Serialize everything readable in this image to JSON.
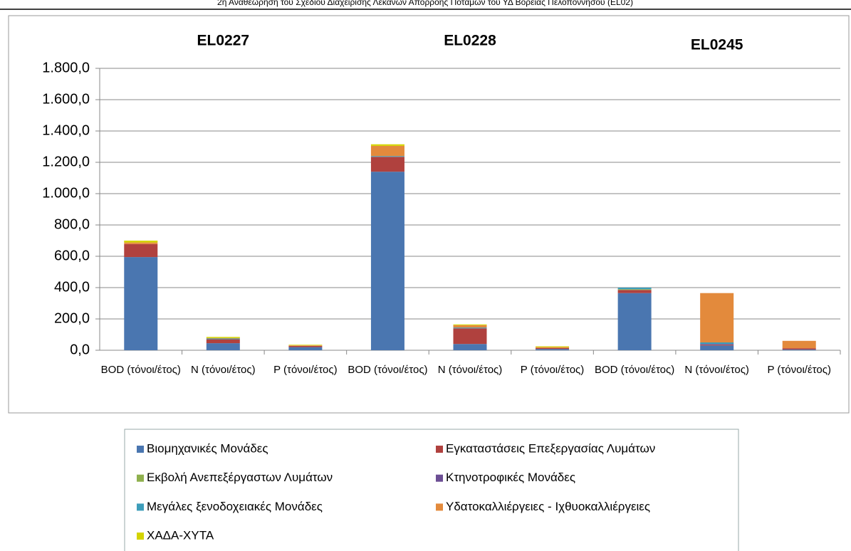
{
  "header": "2η Αναθεώρηση του Σχεδίου Διαχείρισης Λεκανών Απορροής Ποταμών του ΥΔ Βορείας Πελοποννήσου (EL02)",
  "chart_data": {
    "type": "stacked_bar",
    "annotations": [
      "EL0227",
      "EL0228",
      "EL0245"
    ],
    "categories": [
      "BOD (τόνοι/έτος)",
      "N (τόνοι/έτος)",
      "P (τόνοι/έτος)",
      "BOD (τόνοι/έτος)",
      "N (τόνοι/έτος)",
      "P (τόνοι/έτος)",
      "BOD (τόνοι/έτος)",
      "N (τόνοι/έτος)",
      "P (τόνοι/έτος)"
    ],
    "series": [
      {
        "name": "Βιομηχανικές Μονάδες",
        "color": "#4a76b0",
        "values": [
          595,
          45,
          20,
          1140,
          40,
          8,
          365,
          30,
          5
        ]
      },
      {
        "name": "Εγκαταστάσεις Επεξεργασίας Λυμάτων",
        "color": "#b0413e",
        "values": [
          83,
          25,
          8,
          95,
          100,
          6,
          20,
          5,
          8
        ]
      },
      {
        "name": "Εκβολή Ανεπεξέργαστων Λυμάτων",
        "color": "#8fb04d",
        "values": [
          0,
          0,
          0,
          0,
          0,
          0,
          5,
          0,
          0
        ]
      },
      {
        "name": "Κτηνοτροφικές Μονάδες",
        "color": "#6c4e94",
        "values": [
          0,
          0,
          0,
          0,
          0,
          0,
          0,
          5,
          0
        ]
      },
      {
        "name": "Μεγάλες ξενοδοχειακές Μονάδες",
        "color": "#3d9dba",
        "values": [
          0,
          5,
          0,
          5,
          5,
          0,
          10,
          10,
          0
        ]
      },
      {
        "name": "Υδατοκαλλιέργειες - Ιχθυοκαλλιέργειες",
        "color": "#e38a3c",
        "values": [
          10,
          3,
          3,
          65,
          15,
          6,
          0,
          315,
          47
        ]
      },
      {
        "name": "ΧΑΔΑ-ΧΥΤΑ",
        "color": "#d4d400",
        "values": [
          12,
          7,
          4,
          10,
          5,
          5,
          0,
          0,
          0
        ]
      }
    ],
    "ylim": [
      0,
      1800
    ],
    "yticks": [
      {
        "value": 0,
        "label": "0,0"
      },
      {
        "value": 200,
        "label": "200,0"
      },
      {
        "value": 400,
        "label": "400,0"
      },
      {
        "value": 600,
        "label": "600,0"
      },
      {
        "value": 800,
        "label": "800,0"
      },
      {
        "value": 1000,
        "label": "1.000,0"
      },
      {
        "value": 1200,
        "label": "1.200,0"
      },
      {
        "value": 1400,
        "label": "1.400,0"
      },
      {
        "value": 1600,
        "label": "1.600,0"
      },
      {
        "value": 1800,
        "label": "1.800,0"
      }
    ],
    "grid": true
  }
}
